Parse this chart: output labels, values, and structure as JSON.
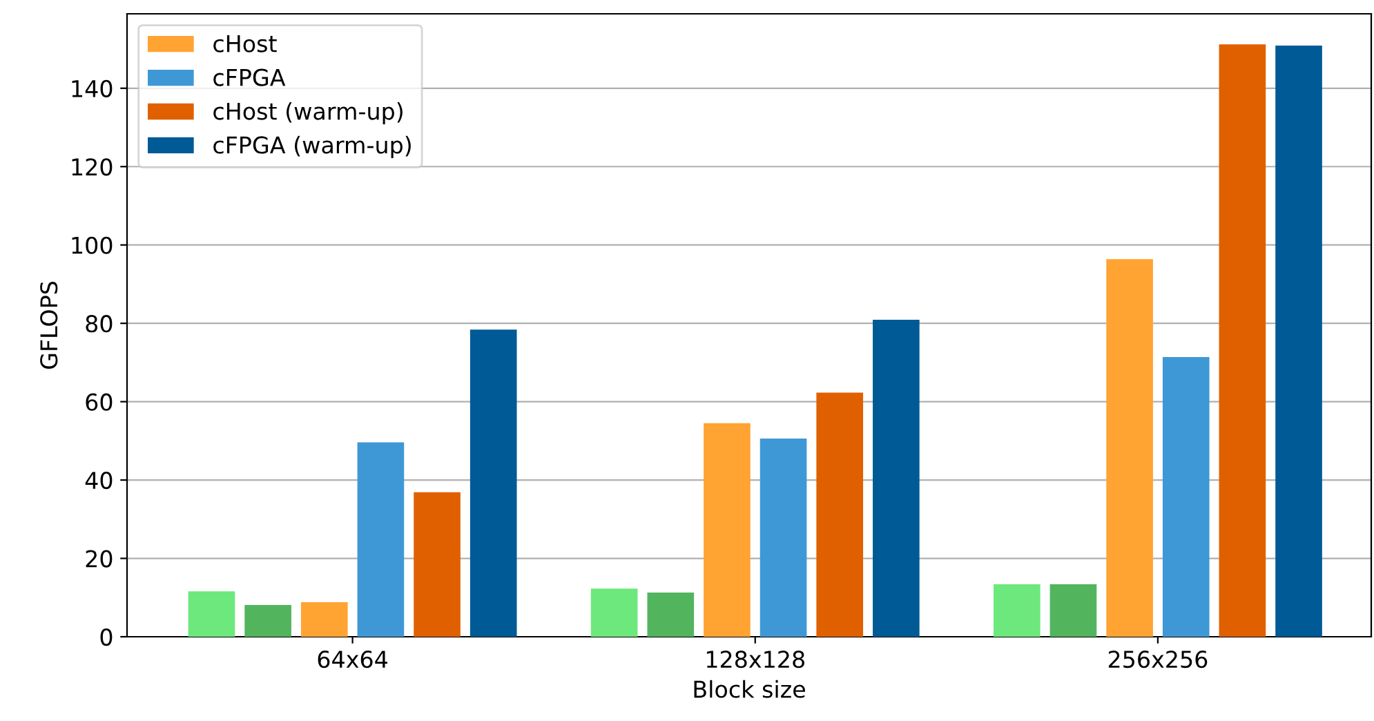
{
  "chart_data": {
    "type": "bar",
    "xlabel": "Block size",
    "ylabel": "GFLOPS",
    "categories": [
      "64x64",
      "128x128",
      "256x256"
    ],
    "series": [
      {
        "color": "#6de87c",
        "values": [
          11.6,
          12.3,
          13.4
        ]
      },
      {
        "color": "#52b55e",
        "values": [
          8.1,
          11.3,
          13.4
        ]
      },
      {
        "name": "cHost",
        "color": "#ffa333",
        "values": [
          8.8,
          54.5,
          96.4
        ]
      },
      {
        "name": "cFPGA",
        "color": "#3f98d6",
        "values": [
          49.6,
          50.6,
          71.4
        ]
      },
      {
        "name": "cHost (warm-up)",
        "color": "#e06000",
        "values": [
          36.9,
          62.3,
          151.2
        ]
      },
      {
        "name": "cFPGA (warm-up)",
        "color": "#005a96",
        "values": [
          78.4,
          80.9,
          150.9
        ]
      }
    ],
    "ylim": [
      0,
      159
    ],
    "yticks": [
      0,
      20,
      40,
      60,
      80,
      100,
      120,
      140
    ],
    "grid": "y",
    "legend": "top left"
  }
}
